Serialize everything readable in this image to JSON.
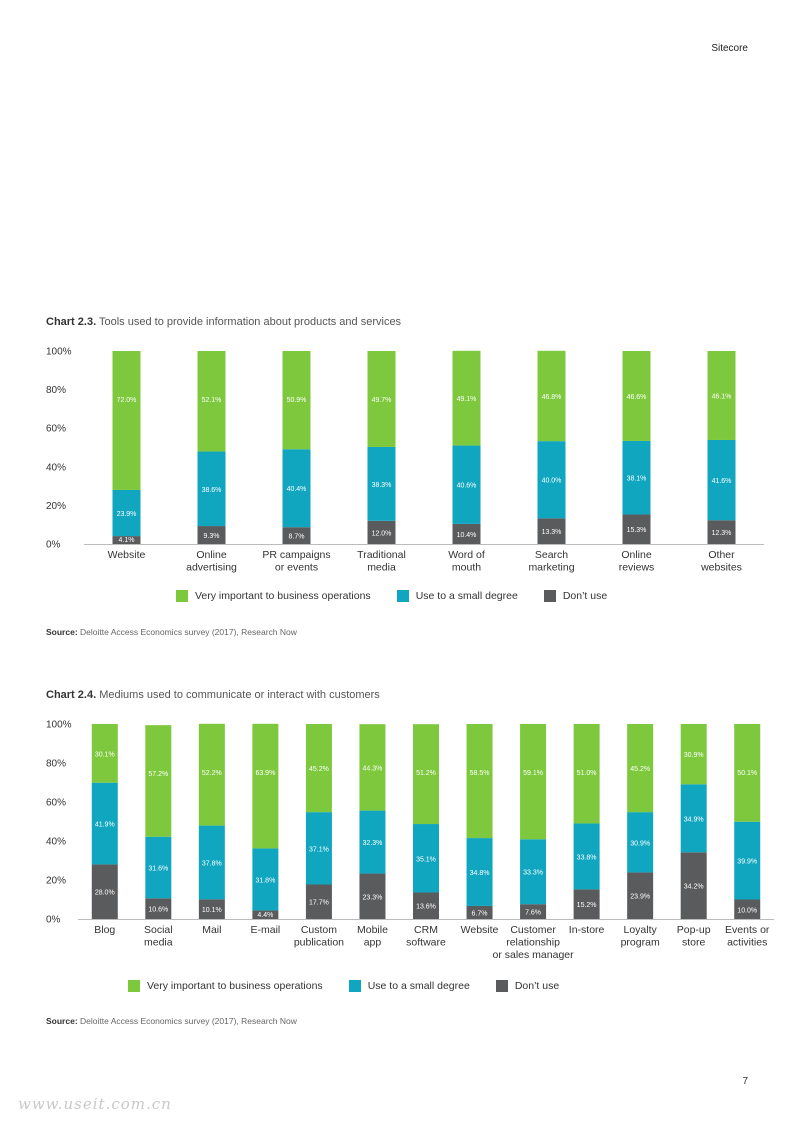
{
  "header": {
    "brand": "Sitecore"
  },
  "page_number": "7",
  "watermark": "www.useit.com.cn",
  "colors": {
    "very_important": "#7dc83c",
    "small_degree": "#11a6bf",
    "dont_use": "#5a5b5d"
  },
  "legend": {
    "very_important": "Very important to business operations",
    "small_degree": "Use to a small degree",
    "dont_use": "Don’t use"
  },
  "chart_data": [
    {
      "type": "bar",
      "stacked": true,
      "title_prefix": "Chart 2.3.",
      "title": "Tools used to provide information about products and services",
      "source_prefix": "Source:",
      "source": "Deloitte Access Economics survey (2017), Research Now",
      "y_ticks": [
        "100%",
        "80%",
        "60%",
        "40%",
        "20%",
        "0%"
      ],
      "ylim": [
        0,
        100
      ],
      "categories": [
        [
          "Website"
        ],
        [
          "Online",
          "advertising"
        ],
        [
          "PR campaigns",
          "or events"
        ],
        [
          "Traditional",
          "media"
        ],
        [
          "Word of",
          "mouth"
        ],
        [
          "Search",
          "marketing"
        ],
        [
          "Online",
          "reviews"
        ],
        [
          "Other",
          "websites"
        ]
      ],
      "series": [
        {
          "name": "Don’t use",
          "key": "dont_use",
          "values": [
            4.1,
            9.3,
            8.7,
            12.0,
            10.4,
            13.3,
            15.3,
            12.3
          ],
          "labels": [
            "4.1%",
            "9.3%",
            "8.7%",
            "12.0%",
            "10.4%",
            "13.3%",
            "15.3%",
            "12.3%"
          ]
        },
        {
          "name": "Use to a small degree",
          "key": "small_degree",
          "values": [
            23.9,
            38.6,
            40.4,
            38.3,
            40.6,
            40.0,
            38.1,
            41.6
          ],
          "labels": [
            "23.9%",
            "38.6%",
            "40.4%",
            "38.3%",
            "40.6%",
            "40.0%",
            "38.1%",
            "41.6%"
          ]
        },
        {
          "name": "Very important to business operations",
          "key": "very_important",
          "values": [
            72.0,
            52.1,
            50.9,
            49.7,
            49.1,
            46.8,
            46.6,
            46.1
          ],
          "labels": [
            "72.0%",
            "52.1%",
            "50.9%",
            "49.7%",
            "49.1%",
            "46.8%",
            "46.6%",
            "46.1%"
          ]
        }
      ]
    },
    {
      "type": "bar",
      "stacked": true,
      "title_prefix": "Chart 2.4.",
      "title": "Mediums used to communicate or interact with customers",
      "source_prefix": "Source:",
      "source": "Deloitte Access Economics survey (2017), Research Now",
      "y_ticks": [
        "100%",
        "80%",
        "60%",
        "40%",
        "20%",
        "0%"
      ],
      "ylim": [
        0,
        100
      ],
      "categories": [
        [
          "Blog"
        ],
        [
          "Social",
          "media"
        ],
        [
          "Mail"
        ],
        [
          "E-mail"
        ],
        [
          "Custom",
          "publication"
        ],
        [
          "Mobile",
          "app"
        ],
        [
          "CRM",
          "software"
        ],
        [
          "Website"
        ],
        [
          "Customer",
          "relationship",
          "or sales manager"
        ],
        [
          "In-store"
        ],
        [
          "Loyalty",
          "program"
        ],
        [
          "Pop-up",
          "store"
        ],
        [
          "Events or",
          "activities"
        ]
      ],
      "series": [
        {
          "name": "Don’t use",
          "key": "dont_use",
          "values": [
            28.0,
            10.6,
            10.1,
            4.4,
            17.7,
            23.3,
            13.6,
            6.7,
            7.6,
            15.2,
            23.9,
            34.2,
            10.0
          ],
          "labels": [
            "28.0%",
            "10.6%",
            "10.1%",
            "4.4%",
            "17.7%",
            "23.3%",
            "13.6%",
            "6.7%",
            "7.6%",
            "15.2%",
            "23.9%",
            "34.2%",
            "10.0%"
          ]
        },
        {
          "name": "Use to a small degree",
          "key": "small_degree",
          "values": [
            41.9,
            31.6,
            37.8,
            31.8,
            37.1,
            32.3,
            35.1,
            34.8,
            33.3,
            33.8,
            30.9,
            34.9,
            39.9
          ],
          "labels": [
            "41.9%",
            "31.6%",
            "37.8%",
            "31.8%",
            "37.1%",
            "32.3%",
            "35.1%",
            "34.8%",
            "33.3%",
            "33.8%",
            "30.9%",
            "34.9%",
            "39.9%"
          ]
        },
        {
          "name": "Very important to business operations",
          "key": "very_important",
          "values": [
            30.1,
            57.2,
            52.2,
            63.9,
            45.2,
            44.3,
            51.2,
            58.5,
            59.1,
            51.0,
            45.2,
            30.9,
            50.1
          ],
          "labels": [
            "30.1%",
            "57.2%",
            "52.2%",
            "63.9%",
            "45.2%",
            "44.3%",
            "51.2%",
            "58.5%",
            "59.1%",
            "51.0%",
            "45.2%",
            "30.9%",
            "50.1%"
          ]
        }
      ]
    }
  ]
}
